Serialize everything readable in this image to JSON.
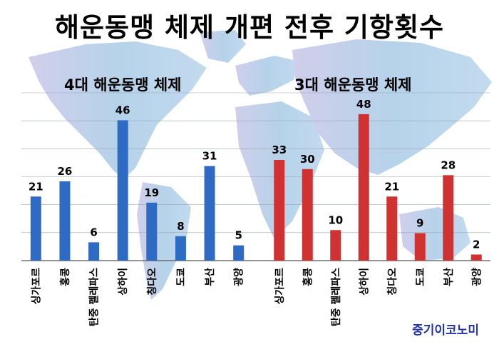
{
  "title": "해운동맹 체제 개편 전후 기항횟수",
  "source": "중기이코노미",
  "colors": {
    "left_series": "#2e6bc4",
    "right_series": "#d03232",
    "map": "#a9cbe6",
    "background": "#ffffff"
  },
  "chart_data": [
    {
      "type": "bar",
      "title": "4대 해운동맹 체제",
      "categories": [
        "싱가포르",
        "홍콩",
        "탄중 펠레파스",
        "상하이",
        "칭다오",
        "도쿄",
        "부산",
        "광양"
      ],
      "values": [
        21,
        26,
        6,
        46,
        19,
        8,
        31,
        5
      ],
      "ylim": [
        0,
        55
      ],
      "grid": true,
      "color": "#2e6bc4"
    },
    {
      "type": "bar",
      "title": "3대 해운동맹 체제",
      "categories": [
        "싱가포르",
        "홍콩",
        "탄중 펠레파스",
        "상하이",
        "칭다오",
        "도쿄",
        "부산",
        "광양"
      ],
      "values": [
        33,
        30,
        10,
        48,
        21,
        9,
        28,
        2
      ],
      "ylim": [
        0,
        55
      ],
      "grid": true,
      "color": "#d03232"
    }
  ]
}
